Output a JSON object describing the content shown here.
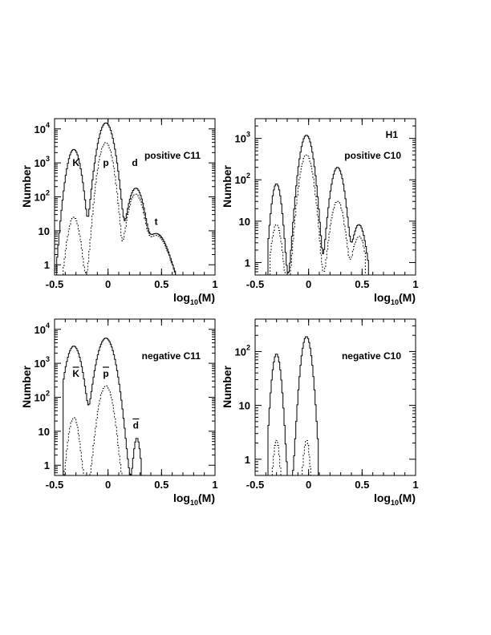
{
  "chart_data": [
    {
      "type": "line",
      "panel_label": "positive C11",
      "corner_label": "",
      "xlabel": "log10(M)",
      "xlabel_main": "log",
      "xlabel_sub": "10",
      "xlabel_tail": "(M)",
      "ylabel": "Number",
      "y_scale": "log",
      "xlim": [
        -0.5,
        1.0
      ],
      "ylim": [
        0.5,
        20000
      ],
      "x_ticks": [
        "-0.5",
        "0",
        "0.5",
        "1"
      ],
      "y_ticks": [
        {
          "base": "1",
          "exp": ""
        },
        {
          "base": "10",
          "exp": ""
        },
        {
          "base": "10",
          "exp": "2"
        },
        {
          "base": "10",
          "exp": "3"
        },
        {
          "base": "10",
          "exp": "4"
        }
      ],
      "peak_labels": [
        {
          "text": "K",
          "x": -0.3,
          "y": 800,
          "bar": false
        },
        {
          "text": "p",
          "x": -0.02,
          "y": 800,
          "bar": false
        },
        {
          "text": "d",
          "x": 0.25,
          "y": 800,
          "bar": false
        },
        {
          "text": "t",
          "x": 0.45,
          "y": 15,
          "bar": false
        }
      ],
      "series": [
        {
          "style": "solid",
          "peaks": [
            {
              "c": -0.32,
              "h": 2500,
              "w": 0.04
            },
            {
              "c": -0.02,
              "h": 15000,
              "w": 0.045
            },
            {
              "c": 0.26,
              "h": 180,
              "w": 0.045
            },
            {
              "c": 0.45,
              "h": 8,
              "w": 0.07
            }
          ],
          "range": [
            -0.48,
            0.62
          ],
          "floor": 0.6
        },
        {
          "style": "dashed",
          "peaks": [
            {
              "c": -0.32,
              "h": 25,
              "w": 0.035
            },
            {
              "c": -0.02,
              "h": 4000,
              "w": 0.04
            },
            {
              "c": 0.26,
              "h": 120,
              "w": 0.045
            },
            {
              "c": 0.45,
              "h": 7,
              "w": 0.07
            }
          ],
          "range": [
            -0.42,
            0.62
          ],
          "floor": 0.6
        }
      ]
    },
    {
      "type": "line",
      "panel_label": "positive C10",
      "corner_label": "H1",
      "xlabel": "log10(M)",
      "xlabel_main": "log",
      "xlabel_sub": "10",
      "xlabel_tail": "(M)",
      "ylabel": "Number",
      "y_scale": "log",
      "xlim": [
        -0.5,
        1.0
      ],
      "ylim": [
        0.5,
        3000
      ],
      "x_ticks": [
        "-0.5",
        "0",
        "0.5",
        "1"
      ],
      "y_ticks": [
        {
          "base": "1",
          "exp": ""
        },
        {
          "base": "10",
          "exp": ""
        },
        {
          "base": "10",
          "exp": "2"
        },
        {
          "base": "10",
          "exp": "3"
        }
      ],
      "peak_labels": [],
      "series": [
        {
          "style": "solid",
          "peaks": [
            {
              "c": -0.3,
              "h": 80,
              "w": 0.03
            },
            {
              "c": -0.02,
              "h": 1200,
              "w": 0.04
            },
            {
              "c": 0.27,
              "h": 200,
              "w": 0.04
            },
            {
              "c": 0.47,
              "h": 8,
              "w": 0.04
            }
          ],
          "range": [
            -0.38,
            0.55
          ],
          "floor": 0.6
        },
        {
          "style": "dashed",
          "peaks": [
            {
              "c": -0.3,
              "h": 8,
              "w": 0.03
            },
            {
              "c": -0.02,
              "h": 400,
              "w": 0.04
            },
            {
              "c": 0.27,
              "h": 30,
              "w": 0.04
            },
            {
              "c": 0.47,
              "h": 4,
              "w": 0.04
            }
          ],
          "range": [
            -0.36,
            0.52
          ],
          "floor": 0.6
        }
      ]
    },
    {
      "type": "line",
      "panel_label": "negative C11",
      "corner_label": "",
      "xlabel": "log10(M)",
      "xlabel_main": "log",
      "xlabel_sub": "10",
      "xlabel_tail": "(M)",
      "ylabel": "Number",
      "y_scale": "log",
      "xlim": [
        -0.5,
        1.0
      ],
      "ylim": [
        0.5,
        20000
      ],
      "x_ticks": [
        "-0.5",
        "0",
        "0.5",
        "1"
      ],
      "y_ticks": [
        {
          "base": "1",
          "exp": ""
        },
        {
          "base": "10",
          "exp": ""
        },
        {
          "base": "10",
          "exp": "2"
        },
        {
          "base": "10",
          "exp": "3"
        },
        {
          "base": "10",
          "exp": "4"
        }
      ],
      "peak_labels": [
        {
          "text": "K",
          "x": -0.3,
          "y": 400,
          "bar": true
        },
        {
          "text": "p",
          "x": -0.02,
          "y": 400,
          "bar": true
        },
        {
          "text": "d",
          "x": 0.26,
          "y": 12,
          "bar": true
        }
      ],
      "series": [
        {
          "style": "solid",
          "peaks": [
            {
              "c": -0.32,
              "h": 3200,
              "w": 0.045
            },
            {
              "c": -0.02,
              "h": 5500,
              "w": 0.05
            },
            {
              "c": 0.27,
              "h": 6,
              "w": 0.02
            }
          ],
          "range": [
            -0.42,
            0.3
          ],
          "floor": 0.6
        },
        {
          "style": "dashed",
          "peaks": [
            {
              "c": -0.32,
              "h": 25,
              "w": 0.03
            },
            {
              "c": -0.02,
              "h": 220,
              "w": 0.04
            }
          ],
          "range": [
            -0.42,
            0.12
          ],
          "floor": 0.6
        }
      ]
    },
    {
      "type": "line",
      "panel_label": "negative C10",
      "corner_label": "",
      "xlabel": "log10(M)",
      "xlabel_main": "log",
      "xlabel_sub": "10",
      "xlabel_tail": "(M)",
      "ylabel": "Number",
      "y_scale": "log",
      "xlim": [
        -0.5,
        1.0
      ],
      "ylim": [
        0.5,
        400
      ],
      "x_ticks": [
        "-0.5",
        "0",
        "0.5",
        "1"
      ],
      "y_ticks": [
        {
          "base": "1",
          "exp": ""
        },
        {
          "base": "10",
          "exp": ""
        },
        {
          "base": "10",
          "exp": "2"
        }
      ],
      "peak_labels": [],
      "series": [
        {
          "style": "solid",
          "peaks": [
            {
              "c": -0.3,
              "h": 90,
              "w": 0.03
            },
            {
              "c": -0.02,
              "h": 190,
              "w": 0.035
            }
          ],
          "range": [
            -0.38,
            0.08
          ],
          "floor": 0.6
        },
        {
          "style": "dashed",
          "peaks": [
            {
              "c": -0.3,
              "h": 2,
              "w": 0.02
            },
            {
              "c": -0.02,
              "h": 2,
              "w": 0.02
            }
          ],
          "range": [
            -0.34,
            0.02
          ],
          "floor": 0.6
        }
      ]
    }
  ]
}
